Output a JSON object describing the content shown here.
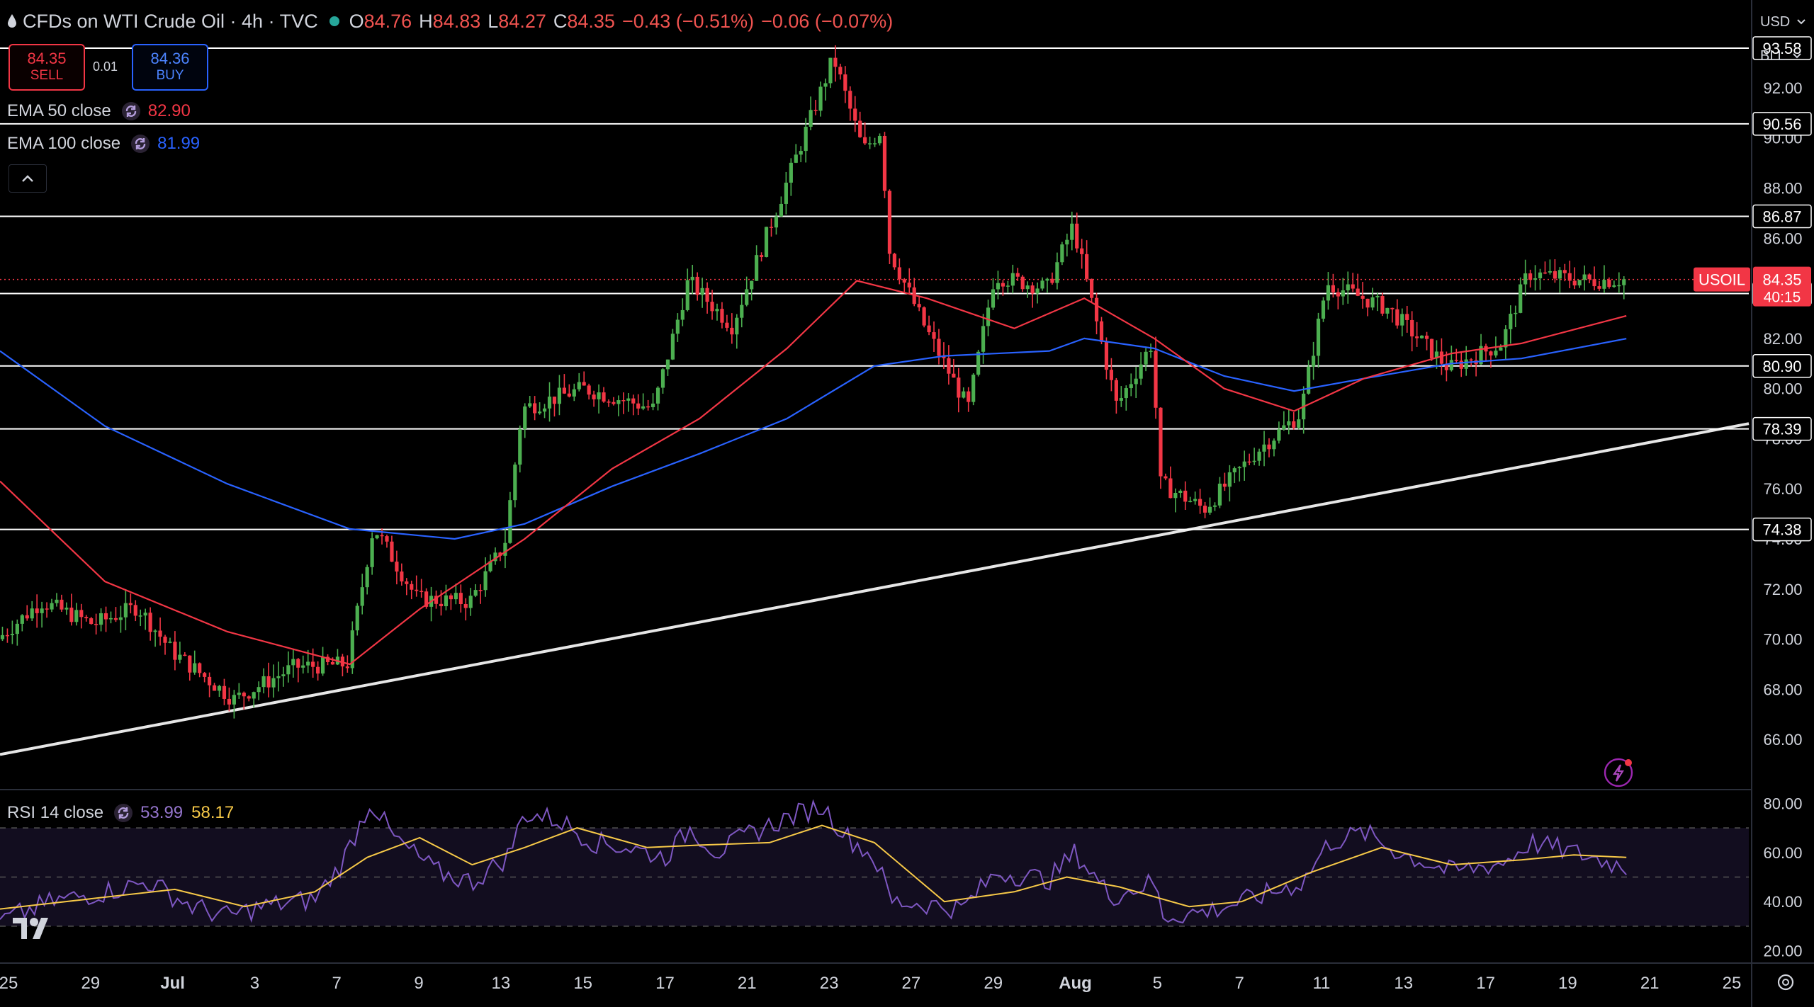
{
  "header": {
    "title": "CFDs on WTI Crude Oil · 4h · TVC",
    "o_label": "O",
    "o": "84.76",
    "h_label": "H",
    "h": "84.83",
    "l_label": "L",
    "l": "84.27",
    "c_label": "C",
    "c": "84.35",
    "change": "−0.43 (−0.51%)",
    "change2": "−0.06 (−0.07%)"
  },
  "trade": {
    "sell_price": "84.35",
    "sell_label": "SELL",
    "buy_price": "84.36",
    "buy_label": "BUY",
    "spread": "0.01"
  },
  "indicators": {
    "ema50": {
      "label": "EMA 50 close",
      "value": "82.90",
      "color": "#f23645"
    },
    "ema100": {
      "label": "EMA 100 close",
      "value": "81.99",
      "color": "#2962ff"
    },
    "rsi": {
      "label": "RSI 14 close",
      "value": "53.99",
      "ma_value": "58.17",
      "color": "#7e57c2",
      "ma_color": "#f7c948"
    }
  },
  "currency": {
    "ccy": "USD",
    "unit": "BLL"
  },
  "colors": {
    "up": "#4caf50",
    "down": "#f23645",
    "hline": "#ffffff",
    "axis_text": "#d1d4dc",
    "price_tag": "#f23645"
  },
  "chart_data": [
    {
      "type": "candlestick",
      "symbol": "USOIL",
      "last_price": "84.35",
      "countdown": "40:15",
      "ylim": [
        64.0,
        95.5
      ],
      "y_ticks": [
        "92.00",
        "90.00",
        "88.00",
        "86.00",
        "84.00",
        "82.00",
        "80.00",
        "78.00",
        "76.00",
        "74.00",
        "72.00",
        "70.00",
        "68.00",
        "66.00"
      ],
      "x_ticks": [
        "25",
        "29",
        "Jul",
        "3",
        "7",
        "9",
        "13",
        "15",
        "17",
        "21",
        "23",
        "27",
        "29",
        "Aug",
        "5",
        "7",
        "11",
        "13",
        "17",
        "19",
        "21",
        "25"
      ],
      "levels": [
        "93.58",
        "90.56",
        "86.87",
        "83.79",
        "80.90",
        "78.39",
        "74.38"
      ],
      "trendline": {
        "from": [
          0,
          65.4
        ],
        "to": [
          1.0,
          78.6
        ]
      },
      "key_points": [
        {
          "t": 0.0,
          "price": 70.0
        },
        {
          "t": 0.025,
          "price": 71.5
        },
        {
          "t": 0.055,
          "price": 70.6
        },
        {
          "t": 0.08,
          "price": 71.3
        },
        {
          "t": 0.1,
          "price": 69.5
        },
        {
          "t": 0.135,
          "price": 67.6
        },
        {
          "t": 0.17,
          "price": 68.9
        },
        {
          "t": 0.2,
          "price": 69.0
        },
        {
          "t": 0.215,
          "price": 74.5
        },
        {
          "t": 0.24,
          "price": 71.6
        },
        {
          "t": 0.27,
          "price": 71.5
        },
        {
          "t": 0.29,
          "price": 73.8
        },
        {
          "t": 0.3,
          "price": 79.2
        },
        {
          "t": 0.335,
          "price": 80.0
        },
        {
          "t": 0.375,
          "price": 79.2
        },
        {
          "t": 0.395,
          "price": 84.3
        },
        {
          "t": 0.42,
          "price": 82.5
        },
        {
          "t": 0.45,
          "price": 88.0
        },
        {
          "t": 0.478,
          "price": 93.2
        },
        {
          "t": 0.495,
          "price": 89.5
        },
        {
          "t": 0.505,
          "price": 90.3
        },
        {
          "t": 0.51,
          "price": 85.5
        },
        {
          "t": 0.53,
          "price": 82.5
        },
        {
          "t": 0.555,
          "price": 79.2
        },
        {
          "t": 0.57,
          "price": 84.5
        },
        {
          "t": 0.6,
          "price": 84.0
        },
        {
          "t": 0.615,
          "price": 86.5
        },
        {
          "t": 0.64,
          "price": 79.3
        },
        {
          "t": 0.66,
          "price": 81.8
        },
        {
          "t": 0.665,
          "price": 76.2
        },
        {
          "t": 0.69,
          "price": 75.2
        },
        {
          "t": 0.72,
          "price": 77.5
        },
        {
          "t": 0.745,
          "price": 79.0
        },
        {
          "t": 0.76,
          "price": 84.2
        },
        {
          "t": 0.795,
          "price": 83.2
        },
        {
          "t": 0.83,
          "price": 80.8
        },
        {
          "t": 0.86,
          "price": 81.8
        },
        {
          "t": 0.875,
          "price": 84.6
        },
        {
          "t": 0.91,
          "price": 84.3
        },
        {
          "t": 0.93,
          "price": 84.35
        }
      ],
      "ema50_points": [
        {
          "t": 0.0,
          "price": 76.3
        },
        {
          "t": 0.06,
          "price": 72.3
        },
        {
          "t": 0.13,
          "price": 70.3
        },
        {
          "t": 0.2,
          "price": 69.0
        },
        {
          "t": 0.24,
          "price": 71.2
        },
        {
          "t": 0.3,
          "price": 74.0
        },
        {
          "t": 0.35,
          "price": 76.8
        },
        {
          "t": 0.4,
          "price": 78.8
        },
        {
          "t": 0.45,
          "price": 81.6
        },
        {
          "t": 0.49,
          "price": 84.3
        },
        {
          "t": 0.53,
          "price": 83.6
        },
        {
          "t": 0.58,
          "price": 82.4
        },
        {
          "t": 0.62,
          "price": 83.6
        },
        {
          "t": 0.66,
          "price": 82.0
        },
        {
          "t": 0.7,
          "price": 80.0
        },
        {
          "t": 0.74,
          "price": 79.1
        },
        {
          "t": 0.78,
          "price": 80.4
        },
        {
          "t": 0.83,
          "price": 81.4
        },
        {
          "t": 0.87,
          "price": 81.8
        },
        {
          "t": 0.93,
          "price": 82.9
        }
      ],
      "ema100_points": [
        {
          "t": 0.0,
          "price": 81.5
        },
        {
          "t": 0.06,
          "price": 78.5
        },
        {
          "t": 0.13,
          "price": 76.2
        },
        {
          "t": 0.2,
          "price": 74.4
        },
        {
          "t": 0.26,
          "price": 74.0
        },
        {
          "t": 0.3,
          "price": 74.6
        },
        {
          "t": 0.35,
          "price": 76.1
        },
        {
          "t": 0.4,
          "price": 77.4
        },
        {
          "t": 0.45,
          "price": 78.8
        },
        {
          "t": 0.5,
          "price": 80.9
        },
        {
          "t": 0.54,
          "price": 81.3
        },
        {
          "t": 0.6,
          "price": 81.5
        },
        {
          "t": 0.62,
          "price": 82.0
        },
        {
          "t": 0.66,
          "price": 81.6
        },
        {
          "t": 0.7,
          "price": 80.5
        },
        {
          "t": 0.74,
          "price": 79.9
        },
        {
          "t": 0.78,
          "price": 80.4
        },
        {
          "t": 0.83,
          "price": 81.0
        },
        {
          "t": 0.87,
          "price": 81.2
        },
        {
          "t": 0.93,
          "price": 81.99
        }
      ]
    },
    {
      "type": "line",
      "name": "RSI 14 close",
      "ylim": [
        15,
        85
      ],
      "y_ticks": [
        "80.00",
        "60.00",
        "40.00",
        "20.00"
      ],
      "bands": [
        70,
        50,
        30
      ],
      "rsi_points": [
        {
          "t": 0.0,
          "v": 32
        },
        {
          "t": 0.03,
          "v": 40
        },
        {
          "t": 0.06,
          "v": 44
        },
        {
          "t": 0.085,
          "v": 48
        },
        {
          "t": 0.11,
          "v": 38
        },
        {
          "t": 0.13,
          "v": 34
        },
        {
          "t": 0.15,
          "v": 38
        },
        {
          "t": 0.18,
          "v": 41
        },
        {
          "t": 0.195,
          "v": 55
        },
        {
          "t": 0.212,
          "v": 81
        },
        {
          "t": 0.225,
          "v": 66
        },
        {
          "t": 0.25,
          "v": 52
        },
        {
          "t": 0.27,
          "v": 48
        },
        {
          "t": 0.29,
          "v": 58
        },
        {
          "t": 0.3,
          "v": 76
        },
        {
          "t": 0.32,
          "v": 73
        },
        {
          "t": 0.34,
          "v": 64
        },
        {
          "t": 0.36,
          "v": 62
        },
        {
          "t": 0.38,
          "v": 58
        },
        {
          "t": 0.395,
          "v": 70
        },
        {
          "t": 0.41,
          "v": 60
        },
        {
          "t": 0.43,
          "v": 68
        },
        {
          "t": 0.45,
          "v": 74
        },
        {
          "t": 0.47,
          "v": 79
        },
        {
          "t": 0.485,
          "v": 66
        },
        {
          "t": 0.5,
          "v": 58
        },
        {
          "t": 0.51,
          "v": 40
        },
        {
          "t": 0.53,
          "v": 39
        },
        {
          "t": 0.55,
          "v": 37
        },
        {
          "t": 0.57,
          "v": 52
        },
        {
          "t": 0.6,
          "v": 49
        },
        {
          "t": 0.615,
          "v": 60
        },
        {
          "t": 0.635,
          "v": 42
        },
        {
          "t": 0.66,
          "v": 48
        },
        {
          "t": 0.665,
          "v": 34
        },
        {
          "t": 0.69,
          "v": 36
        },
        {
          "t": 0.72,
          "v": 42
        },
        {
          "t": 0.745,
          "v": 48
        },
        {
          "t": 0.76,
          "v": 64
        },
        {
          "t": 0.78,
          "v": 68
        },
        {
          "t": 0.8,
          "v": 60
        },
        {
          "t": 0.83,
          "v": 52
        },
        {
          "t": 0.86,
          "v": 56
        },
        {
          "t": 0.875,
          "v": 64
        },
        {
          "t": 0.9,
          "v": 60
        },
        {
          "t": 0.93,
          "v": 54
        }
      ],
      "rsi_ma_points": [
        {
          "t": 0.0,
          "v": 37
        },
        {
          "t": 0.05,
          "v": 41
        },
        {
          "t": 0.1,
          "v": 45
        },
        {
          "t": 0.14,
          "v": 38
        },
        {
          "t": 0.18,
          "v": 44
        },
        {
          "t": 0.21,
          "v": 58
        },
        {
          "t": 0.24,
          "v": 66
        },
        {
          "t": 0.27,
          "v": 55
        },
        {
          "t": 0.3,
          "v": 62
        },
        {
          "t": 0.33,
          "v": 70
        },
        {
          "t": 0.37,
          "v": 62
        },
        {
          "t": 0.4,
          "v": 63
        },
        {
          "t": 0.44,
          "v": 64
        },
        {
          "t": 0.47,
          "v": 71
        },
        {
          "t": 0.5,
          "v": 64
        },
        {
          "t": 0.54,
          "v": 40
        },
        {
          "t": 0.58,
          "v": 44
        },
        {
          "t": 0.61,
          "v": 50
        },
        {
          "t": 0.64,
          "v": 46
        },
        {
          "t": 0.68,
          "v": 38
        },
        {
          "t": 0.71,
          "v": 40
        },
        {
          "t": 0.75,
          "v": 52
        },
        {
          "t": 0.79,
          "v": 62
        },
        {
          "t": 0.83,
          "v": 55
        },
        {
          "t": 0.87,
          "v": 57
        },
        {
          "t": 0.9,
          "v": 59
        },
        {
          "t": 0.93,
          "v": 58
        }
      ]
    }
  ]
}
